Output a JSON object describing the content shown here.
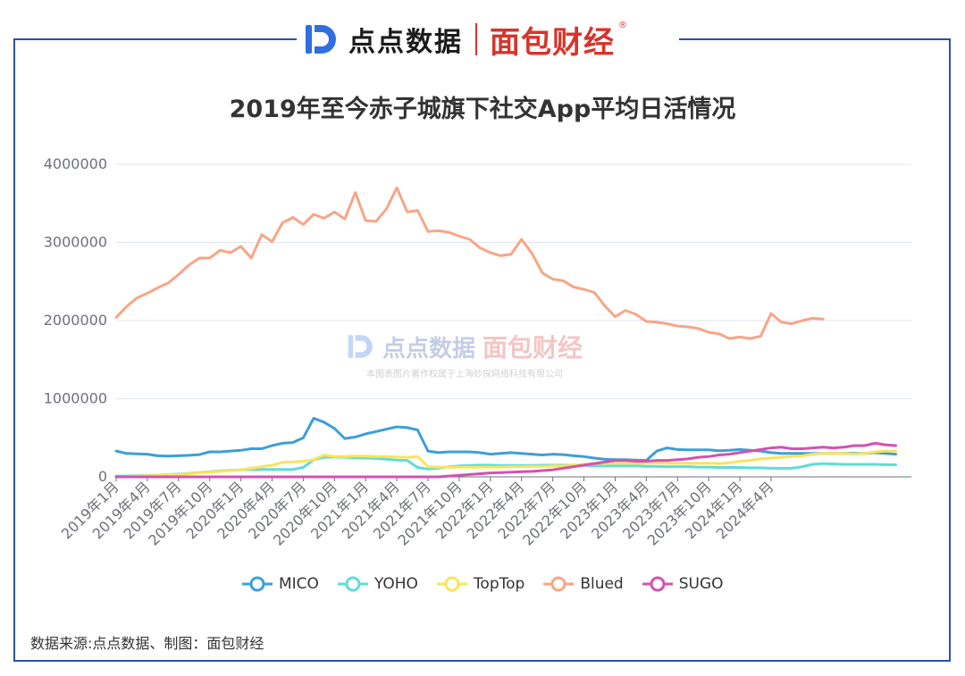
{
  "header": {
    "brand_left": "点点数据",
    "brand_right": "面包财经",
    "reg_mark": "®"
  },
  "watermark": {
    "left": "点点数据",
    "right": "面包财经",
    "note": "本图表图片著作权属于上海妙探网络科技有限公司"
  },
  "source_text": "数据来源:点点数据、制图：面包财经",
  "colors": {
    "frame": "#2f4fa8",
    "brand_red": "#d8342b",
    "MICO": "#3ba0d8",
    "YOHO": "#5fdcd8",
    "TopTop": "#fbe35a",
    "Blued": "#f8a586",
    "SUGO": "#d252b2"
  },
  "chart_data": {
    "type": "line",
    "title": "2019年至今赤子城旗下社交App平均日活情况",
    "xlabel": "",
    "ylabel": "",
    "ylim": [
      0,
      4000000
    ],
    "y_ticks": [
      "0",
      "1000000",
      "2000000",
      "3000000",
      "4000000"
    ],
    "grid": true,
    "legend_position": "bottom",
    "x_tick_labels": [
      "2019年1月",
      "2019年4月",
      "2019年7月",
      "2019年10月",
      "2020年1月",
      "2020年4月",
      "2020年7月",
      "2020年10月",
      "2021年1月",
      "2021年4月",
      "2021年7月",
      "2021年10月",
      "2022年1月",
      "2022年4月",
      "2022年7月",
      "2022年10月",
      "2023年1月",
      "2023年4月",
      "2023年7月",
      "2023年10月",
      "2024年1月",
      "2024年4月"
    ],
    "series": [
      {
        "name": "MICO",
        "values": [
          330000,
          300000,
          295000,
          290000,
          270000,
          265000,
          270000,
          275000,
          285000,
          320000,
          320000,
          330000,
          340000,
          360000,
          360000,
          400000,
          430000,
          440000,
          500000,
          750000,
          700000,
          620000,
          490000,
          510000,
          550000,
          580000,
          610000,
          640000,
          630000,
          600000,
          330000,
          310000,
          320000,
          320000,
          320000,
          310000,
          290000,
          300000,
          310000,
          300000,
          290000,
          280000,
          290000,
          285000,
          270000,
          260000,
          240000,
          225000,
          220000,
          220000,
          215000,
          210000,
          330000,
          370000,
          350000,
          345000,
          345000,
          345000,
          335000,
          340000,
          350000,
          340000,
          330000,
          310000,
          300000,
          300000,
          300000,
          300000,
          300000,
          300000,
          300000,
          300000,
          300000,
          310000,
          300000,
          290000
        ]
      },
      {
        "name": "YOHO",
        "values": [
          10000,
          12000,
          15000,
          18000,
          22000,
          28000,
          35000,
          45000,
          55000,
          65000,
          75000,
          85000,
          90000,
          95000,
          95000,
          95000,
          95000,
          95000,
          120000,
          220000,
          250000,
          255000,
          250000,
          245000,
          240000,
          235000,
          225000,
          215000,
          210000,
          120000,
          100000,
          110000,
          130000,
          140000,
          145000,
          150000,
          150000,
          145000,
          145000,
          145000,
          145000,
          150000,
          150000,
          150000,
          150000,
          145000,
          140000,
          140000,
          140000,
          140000,
          140000,
          135000,
          135000,
          130000,
          130000,
          130000,
          125000,
          125000,
          120000,
          120000,
          120000,
          115000,
          115000,
          110000,
          110000,
          110000,
          130000,
          160000,
          170000,
          165000,
          160000,
          160000,
          160000,
          160000,
          155000,
          155000
        ]
      },
      {
        "name": "TopTop",
        "values": [
          0,
          5000,
          10000,
          15000,
          20000,
          25000,
          30000,
          40000,
          50000,
          60000,
          70000,
          80000,
          90000,
          110000,
          130000,
          150000,
          185000,
          190000,
          200000,
          220000,
          280000,
          260000,
          260000,
          265000,
          265000,
          260000,
          260000,
          255000,
          250000,
          260000,
          130000,
          125000,
          125000,
          125000,
          125000,
          125000,
          125000,
          125000,
          130000,
          130000,
          135000,
          135000,
          140000,
          140000,
          150000,
          160000,
          170000,
          175000,
          175000,
          175000,
          175000,
          175000,
          180000,
          175000,
          175000,
          175000,
          175000,
          175000,
          170000,
          180000,
          200000,
          210000,
          230000,
          240000,
          250000,
          260000,
          270000,
          290000,
          300000,
          300000,
          300000,
          290000,
          300000,
          320000,
          330000,
          330000
        ]
      },
      {
        "name": "Blued",
        "values": [
          2040000,
          2180000,
          2290000,
          2350000,
          2420000,
          2480000,
          2590000,
          2710000,
          2800000,
          2800000,
          2900000,
          2870000,
          2950000,
          2800000,
          3100000,
          3010000,
          3250000,
          3320000,
          3230000,
          3360000,
          3310000,
          3390000,
          3300000,
          3640000,
          3280000,
          3270000,
          3430000,
          3700000,
          3390000,
          3410000,
          3140000,
          3150000,
          3130000,
          3080000,
          3040000,
          2930000,
          2870000,
          2830000,
          2850000,
          3040000,
          2860000,
          2610000,
          2530000,
          2510000,
          2430000,
          2400000,
          2360000,
          2190000,
          2050000,
          2130000,
          2080000,
          1990000,
          1980000,
          1960000,
          1930000,
          1920000,
          1900000,
          1850000,
          1830000,
          1770000,
          1790000,
          1770000,
          1800000,
          2090000,
          1980000,
          1960000,
          2000000,
          2030000,
          2020000
        ]
      },
      {
        "name": "SUGO",
        "values": [
          0,
          0,
          0,
          0,
          0,
          0,
          0,
          0,
          0,
          0,
          0,
          0,
          0,
          0,
          0,
          0,
          0,
          0,
          0,
          0,
          0,
          0,
          0,
          0,
          0,
          0,
          0,
          0,
          0,
          0,
          0,
          0,
          10000,
          20000,
          30000,
          40000,
          50000,
          55000,
          60000,
          65000,
          70000,
          80000,
          90000,
          110000,
          130000,
          150000,
          170000,
          190000,
          210000,
          210000,
          200000,
          200000,
          210000,
          210000,
          220000,
          230000,
          250000,
          260000,
          280000,
          290000,
          310000,
          330000,
          350000,
          370000,
          380000,
          360000,
          360000,
          370000,
          380000,
          370000,
          380000,
          400000,
          400000,
          430000,
          410000,
          400000
        ]
      }
    ]
  }
}
